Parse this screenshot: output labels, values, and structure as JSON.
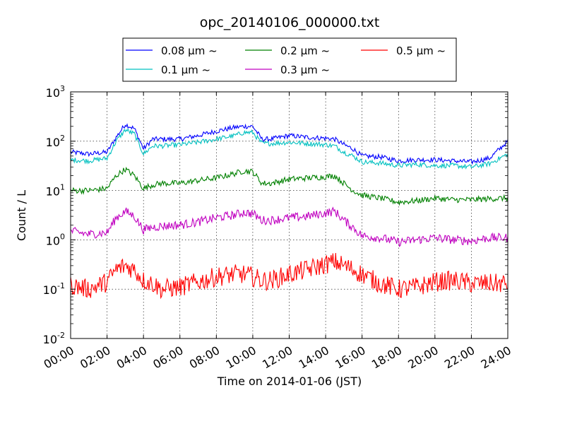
{
  "chart_data": {
    "type": "line",
    "title": "opc_20140106_000000.txt",
    "xlabel": "Time on 2014-01-06 (JST)",
    "ylabel": "Count / L",
    "y_scale": "log",
    "ylim": [
      0.01,
      1000
    ],
    "y_ticks": [
      {
        "base": "10",
        "exp": "-2"
      },
      {
        "base": "10",
        "exp": "-1"
      },
      {
        "base": "10",
        "exp": "0"
      },
      {
        "base": "10",
        "exp": "1"
      },
      {
        "base": "10",
        "exp": "2"
      },
      {
        "base": "10",
        "exp": "3"
      }
    ],
    "xlim": [
      "00:00",
      "24:00"
    ],
    "x_ticks": [
      "00:00",
      "02:00",
      "04:00",
      "06:00",
      "08:00",
      "10:00",
      "12:00",
      "14:00",
      "16:00",
      "18:00",
      "20:00",
      "22:00",
      "24:00"
    ],
    "grid": true,
    "legend_position": "top-center",
    "x": [
      "00:00",
      "01:00",
      "02:00",
      "02:30",
      "03:00",
      "03:30",
      "04:00",
      "04:30",
      "05:00",
      "06:00",
      "07:00",
      "08:00",
      "09:00",
      "09:30",
      "10:00",
      "10:30",
      "11:00",
      "12:00",
      "13:00",
      "14:00",
      "14:30",
      "15:00",
      "15:30",
      "16:00",
      "17:00",
      "18:00",
      "19:00",
      "20:00",
      "21:00",
      "22:00",
      "23:00",
      "24:00"
    ],
    "series": [
      {
        "name": "0.08 μm ~",
        "color": "#0000ff",
        "noise": 0.05,
        "values": [
          60,
          55,
          60,
          120,
          220,
          180,
          70,
          110,
          110,
          110,
          130,
          160,
          190,
          200,
          200,
          110,
          110,
          130,
          120,
          115,
          110,
          85,
          70,
          50,
          48,
          40,
          42,
          42,
          40,
          38,
          45,
          100
        ]
      },
      {
        "name": "0.1 μm ~",
        "color": "#00c0c0",
        "noise": 0.05,
        "values": [
          42,
          40,
          45,
          100,
          170,
          140,
          55,
          80,
          80,
          85,
          95,
          110,
          130,
          150,
          150,
          90,
          90,
          95,
          90,
          85,
          80,
          60,
          50,
          38,
          36,
          32,
          34,
          32,
          32,
          30,
          35,
          55
        ]
      },
      {
        "name": "0.2 μm ~",
        "color": "#008000",
        "noise": 0.06,
        "values": [
          10,
          10,
          11,
          20,
          27,
          20,
          11,
          13,
          14,
          14,
          16,
          18,
          22,
          25,
          24,
          14,
          14,
          17,
          18,
          19,
          20,
          14,
          10,
          8,
          7,
          5.8,
          6.2,
          7,
          6.5,
          6.5,
          6.8,
          7
        ]
      },
      {
        "name": "0.3 μm ~",
        "color": "#c000c0",
        "noise": 0.09,
        "values": [
          1.5,
          1.3,
          1.4,
          2.8,
          3.8,
          3.0,
          1.6,
          1.8,
          1.9,
          2.0,
          2.3,
          2.8,
          3.2,
          3.6,
          3.4,
          2.5,
          2.5,
          2.8,
          3.0,
          3.5,
          3.8,
          2.5,
          1.8,
          1.2,
          1.1,
          0.9,
          1.0,
          1.1,
          1.0,
          0.95,
          1.1,
          1.1
        ]
      },
      {
        "name": "0.5 μm ~",
        "color": "#ff0000",
        "noise": 0.2,
        "values": [
          0.12,
          0.1,
          0.14,
          0.25,
          0.3,
          0.25,
          0.15,
          0.13,
          0.1,
          0.11,
          0.14,
          0.18,
          0.2,
          0.2,
          0.18,
          0.15,
          0.15,
          0.2,
          0.25,
          0.32,
          0.36,
          0.3,
          0.25,
          0.2,
          0.13,
          0.1,
          0.11,
          0.14,
          0.15,
          0.13,
          0.13,
          0.13
        ]
      }
    ]
  }
}
